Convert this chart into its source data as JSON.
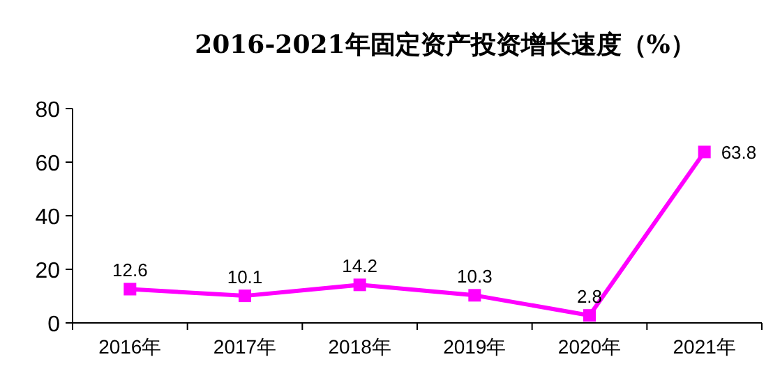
{
  "chart_data": {
    "type": "line",
    "title": "2016-2021年固定资产投资增长速度（%）",
    "categories": [
      "2016年",
      "2017年",
      "2018年",
      "2019年",
      "2020年",
      "2021年"
    ],
    "values": [
      12.6,
      10.1,
      14.2,
      10.3,
      2.8,
      63.8
    ],
    "color": "#ff00ff",
    "marker": "square",
    "line_style": "solid",
    "ylim": [
      0,
      80
    ],
    "yticks": [
      0,
      20,
      40,
      60,
      80
    ],
    "data_labels": true
  }
}
